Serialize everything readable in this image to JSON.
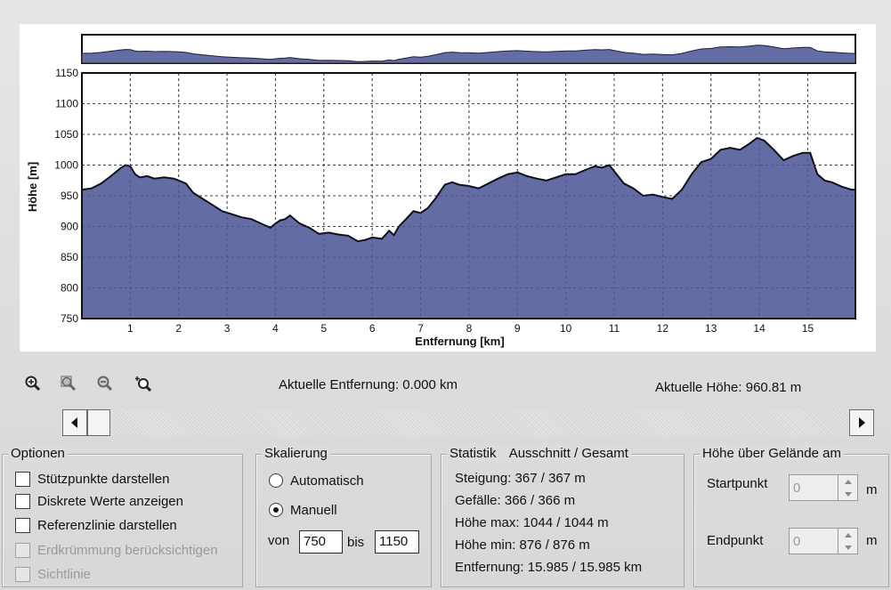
{
  "chart_data": {
    "type": "area",
    "xlabel": "Entfernung [km]",
    "ylabel": "Höhe [m]",
    "xlim": [
      0,
      15.985
    ],
    "ylim": [
      750,
      1150
    ],
    "x_ticks": [
      1,
      2,
      3,
      4,
      5,
      6,
      7,
      8,
      9,
      10,
      11,
      12,
      13,
      14,
      15
    ],
    "y_ticks": [
      750,
      800,
      850,
      900,
      950,
      1000,
      1050,
      1100,
      1150
    ],
    "grid": true,
    "fill_color": "#646ca4",
    "line_color": "#111111",
    "x": [
      0,
      0.2,
      0.4,
      0.6,
      0.8,
      0.9,
      1.0,
      1.1,
      1.2,
      1.35,
      1.5,
      1.7,
      1.9,
      2.0,
      2.15,
      2.3,
      2.5,
      2.7,
      2.9,
      3.1,
      3.3,
      3.5,
      3.7,
      3.9,
      4.0,
      4.1,
      4.2,
      4.3,
      4.5,
      4.7,
      4.9,
      5.1,
      5.3,
      5.5,
      5.7,
      5.85,
      6.0,
      6.2,
      6.35,
      6.45,
      6.55,
      6.7,
      6.85,
      7.0,
      7.15,
      7.3,
      7.5,
      7.65,
      7.8,
      8.0,
      8.2,
      8.4,
      8.6,
      8.8,
      9.0,
      9.2,
      9.4,
      9.6,
      9.8,
      10.0,
      10.2,
      10.4,
      10.6,
      10.75,
      10.9,
      11.05,
      11.2,
      11.4,
      11.6,
      11.8,
      12.0,
      12.2,
      12.4,
      12.6,
      12.8,
      13.0,
      13.2,
      13.4,
      13.6,
      13.8,
      13.95,
      14.1,
      14.3,
      14.5,
      14.7,
      14.9,
      15.05,
      15.2,
      15.35,
      15.5,
      15.7,
      15.9,
      15.985
    ],
    "y": [
      960,
      962,
      970,
      982,
      995,
      1000,
      998,
      985,
      980,
      982,
      978,
      980,
      978,
      975,
      970,
      955,
      945,
      935,
      925,
      920,
      915,
      912,
      905,
      898,
      905,
      910,
      912,
      918,
      905,
      898,
      888,
      890,
      887,
      885,
      876,
      878,
      882,
      880,
      893,
      886,
      900,
      912,
      925,
      922,
      930,
      945,
      968,
      972,
      968,
      966,
      962,
      970,
      978,
      985,
      988,
      982,
      978,
      975,
      980,
      985,
      985,
      992,
      998,
      996,
      1000,
      985,
      970,
      962,
      950,
      952,
      948,
      945,
      960,
      985,
      1005,
      1010,
      1025,
      1028,
      1025,
      1035,
      1044,
      1040,
      1025,
      1008,
      1015,
      1020,
      1020,
      985,
      975,
      972,
      965,
      960,
      960
    ]
  },
  "chart_icons": {
    "zoom_in": "zoom-in-icon",
    "zoom_fit": "zoom-fit-icon",
    "zoom_out": "zoom-out-icon",
    "zoom_reset": "zoom-reset-icon"
  },
  "readouts": {
    "distance": "Aktuelle Entfernung: 0.000 km",
    "height": "Aktuelle Höhe: 960.81 m"
  },
  "options": {
    "title": "Optionen",
    "items": [
      {
        "label": "Stützpunkte darstellen",
        "checked": false,
        "enabled": true
      },
      {
        "label": "Diskrete Werte anzeigen",
        "checked": false,
        "enabled": true
      },
      {
        "label": "Referenzlinie darstellen",
        "checked": false,
        "enabled": true
      },
      {
        "label": "Erdkrümmung berücksichtigen",
        "checked": false,
        "enabled": false
      },
      {
        "label": "Sichtlinie",
        "checked": false,
        "enabled": false
      }
    ]
  },
  "scaling": {
    "title": "Skalierung",
    "auto_label": "Automatisch",
    "manual_label": "Manuell",
    "selected": "Manuell",
    "from_label": "von",
    "from_value": "750",
    "to_label": "bis",
    "to_value": "1150"
  },
  "stats": {
    "title": "Statistik",
    "subtitle": "Ausschnitt / Gesamt",
    "rows": [
      "Steigung: 367 / 367 m",
      "Gefälle: 366 / 366 m",
      "Höhe max: 1044 / 1044 m",
      "Höhe min: 876 / 876 m",
      "Entfernung: 15.985 / 15.985 km"
    ]
  },
  "ground": {
    "title": "Höhe über Gelände am",
    "start_label": "Startpunkt",
    "start_value": "0",
    "start_unit": "m",
    "end_label": "Endpunkt",
    "end_value": "0",
    "end_unit": "m"
  }
}
